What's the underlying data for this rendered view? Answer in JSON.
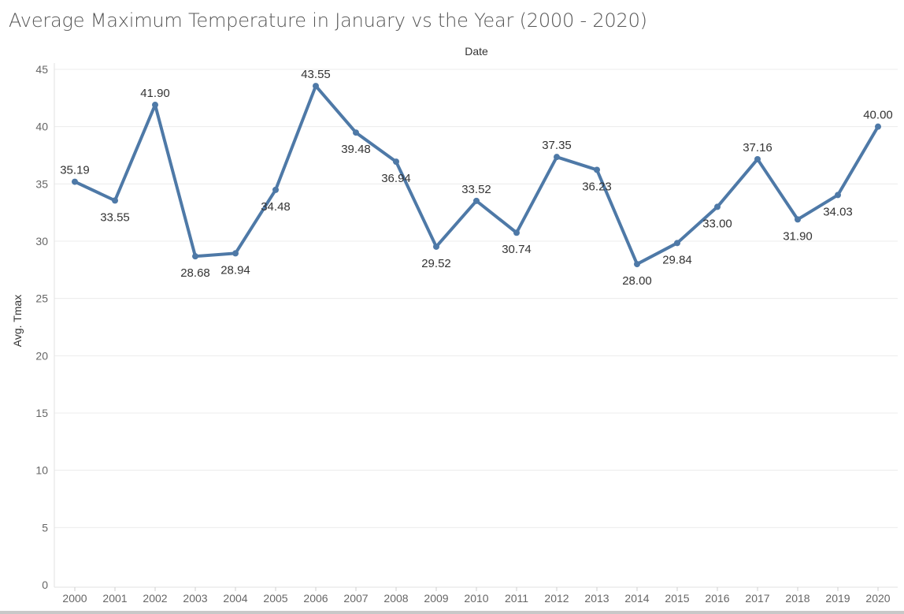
{
  "chart_data": {
    "type": "line",
    "title": "Average Maximum Temperature in January vs the Year (2000 - 2020)",
    "xlabel": "Date",
    "ylabel": "Avg. Tmax",
    "categories": [
      "2000",
      "2001",
      "2002",
      "2003",
      "2004",
      "2005",
      "2006",
      "2007",
      "2008",
      "2009",
      "2010",
      "2011",
      "2012",
      "2013",
      "2014",
      "2015",
      "2016",
      "2017",
      "2018",
      "2019",
      "2020"
    ],
    "series": [
      {
        "values": [
          35.19,
          33.55,
          41.9,
          28.68,
          28.94,
          34.48,
          43.55,
          39.48,
          36.94,
          29.52,
          33.52,
          30.74,
          37.35,
          36.23,
          28.0,
          29.84,
          33.0,
          37.16,
          31.9,
          34.03,
          40.0
        ],
        "data_labels": [
          "35.19",
          "33.55",
          "41.90",
          "28.68",
          "28.94",
          "34.48",
          "43.55",
          "39.48",
          "36.94",
          "29.52",
          "33.52",
          "30.74",
          "37.35",
          "36.23",
          "28.00",
          "29.84",
          "33.00",
          "37.16",
          "31.90",
          "34.03",
          "40.00"
        ],
        "color": "#4e79a7"
      }
    ],
    "yticks": [
      "0",
      "5",
      "10",
      "15",
      "20",
      "25",
      "30",
      "35",
      "40",
      "45"
    ],
    "ylim": [
      0,
      45
    ],
    "grid": true,
    "legend": "none"
  }
}
